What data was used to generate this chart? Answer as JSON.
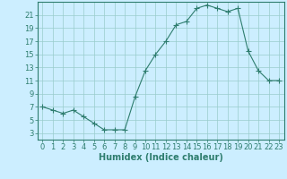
{
  "x": [
    0,
    1,
    2,
    3,
    4,
    5,
    6,
    7,
    8,
    9,
    10,
    11,
    12,
    13,
    14,
    15,
    16,
    17,
    18,
    19,
    20,
    21,
    22,
    23
  ],
  "y": [
    7,
    6.5,
    6,
    6.5,
    5.5,
    4.5,
    3.5,
    3.5,
    3.5,
    8.5,
    12.5,
    15,
    17,
    19.5,
    20,
    22,
    22.5,
    22,
    21.5,
    22,
    15.5,
    12.5,
    11,
    11
  ],
  "xlabel": "Humidex (Indice chaleur)",
  "xlim": [
    -0.5,
    23.5
  ],
  "ylim": [
    2,
    23
  ],
  "yticks": [
    3,
    5,
    7,
    9,
    11,
    13,
    15,
    17,
    19,
    21
  ],
  "xticks": [
    0,
    1,
    2,
    3,
    4,
    5,
    6,
    7,
    8,
    9,
    10,
    11,
    12,
    13,
    14,
    15,
    16,
    17,
    18,
    19,
    20,
    21,
    22,
    23
  ],
  "line_color": "#2e7d6e",
  "marker": "+",
  "marker_size": 4,
  "bg_color": "#cceeff",
  "grid_color": "#99cccc",
  "spine_color": "#2e7d6e",
  "tick_color": "#2e7d6e",
  "label_color": "#2e7d6e",
  "font_size": 6,
  "xlabel_font_size": 7
}
